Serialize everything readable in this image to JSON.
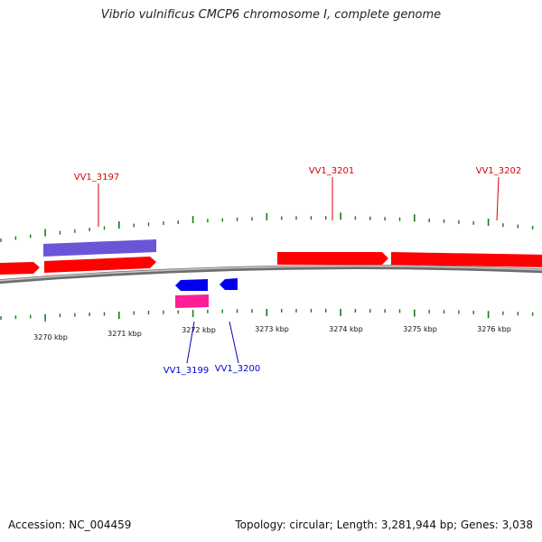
{
  "title": "Vibrio vulnificus CMCP6 chromosome I, complete genome",
  "footer": {
    "accession_label": "Accession:",
    "accession": "NC_004459",
    "summary": "Topology: circular; Length: 3,281,944 bp; Genes: 3,038"
  },
  "colors": {
    "forward_gene": "#ff0000",
    "reverse_gene": "#0000ee",
    "forward_label": "#dd0000",
    "reverse_label": "#0000cc",
    "tick": "#1a7a1a",
    "backbone": "#7a7a7a"
  },
  "scale_labels": [
    "3270 kbp",
    "3271 kbp",
    "3272 kbp",
    "3273 kbp",
    "3274 kbp",
    "3275 kbp",
    "3276 kbp"
  ],
  "gene_labels": {
    "vv1_3197": "VV1_3197",
    "vv1_3201": "VV1_3201",
    "vv1_3202": "VV1_3202",
    "vv1_3199": "VV1_3199",
    "vv1_3200": "VV1_3200"
  }
}
